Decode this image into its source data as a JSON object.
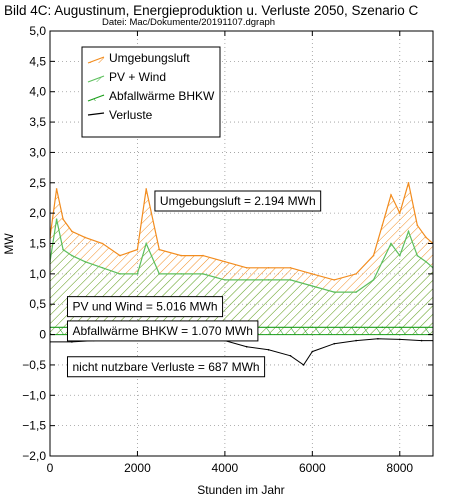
{
  "chart_data": {
    "type": "area",
    "title": "Bild 4C: Augustinum, Energieproduktion u. Verluste 2050, Szenario C",
    "subtitle": "Datei: Mac/Dokumente/20191107.dgraph",
    "xlabel": "Stunden im Jahr",
    "ylabel": "MW",
    "xlim": [
      0,
      8760
    ],
    "ylim": [
      -2.0,
      5.0
    ],
    "x_ticks": [
      0,
      2000,
      4000,
      6000,
      8000
    ],
    "x_tick_labels": [
      "0",
      "2000",
      "4000",
      "6000",
      "8000"
    ],
    "y_ticks": [
      -2.0,
      -1.5,
      -1.0,
      -0.5,
      0,
      0.5,
      1.0,
      1.5,
      2.0,
      2.5,
      3.0,
      3.5,
      4.0,
      4.5,
      5.0
    ],
    "y_tick_labels": [
      "−2,0",
      "−1,5",
      "−1,0",
      "−0,5",
      "0",
      "0,5",
      "1,0",
      "1,5",
      "2,0",
      "2,5",
      "3,0",
      "3,5",
      "4,0",
      "4,5",
      "5,0"
    ],
    "grid": true,
    "legend_position": "top-left",
    "series": [
      {
        "name": "Umgebungsluft",
        "color": "#f28c1e",
        "x": [
          0,
          150,
          300,
          500,
          800,
          1200,
          1600,
          2000,
          2200,
          2500,
          3000,
          3500,
          4000,
          4500,
          5000,
          5500,
          6000,
          6500,
          7000,
          7400,
          7600,
          7800,
          8000,
          8200,
          8400,
          8600,
          8760
        ],
        "y": [
          1.6,
          2.4,
          1.9,
          1.7,
          1.6,
          1.5,
          1.3,
          1.4,
          2.4,
          1.4,
          1.3,
          1.3,
          1.2,
          1.1,
          1.1,
          1.1,
          1.0,
          0.9,
          1.0,
          1.3,
          1.8,
          2.3,
          2.0,
          2.5,
          1.8,
          1.6,
          1.5
        ]
      },
      {
        "name": "PV + Wind",
        "color": "#5cbf5c",
        "x": [
          0,
          150,
          300,
          500,
          800,
          1200,
          1600,
          2000,
          2200,
          2500,
          3000,
          3500,
          4000,
          4500,
          5000,
          5500,
          6000,
          6500,
          7000,
          7400,
          7600,
          7800,
          8000,
          8200,
          8400,
          8600,
          8760
        ],
        "y": [
          1.2,
          1.9,
          1.4,
          1.3,
          1.2,
          1.1,
          1.0,
          1.0,
          1.5,
          1.0,
          1.0,
          1.0,
          0.9,
          0.9,
          0.9,
          0.9,
          0.8,
          0.7,
          0.7,
          0.9,
          1.2,
          1.5,
          1.3,
          1.7,
          1.3,
          1.2,
          1.1
        ]
      },
      {
        "name": "Abfallwärme BHKW",
        "color": "#1a9e1a",
        "x": [
          0,
          1000,
          2000,
          3000,
          4000,
          5000,
          6000,
          7000,
          7600,
          8000,
          8760
        ],
        "y": [
          0.12,
          0.12,
          0.12,
          0.12,
          0.12,
          0.12,
          0.12,
          0.12,
          0.12,
          0.12,
          0.12
        ]
      },
      {
        "name": "Verluste",
        "color": "#000000",
        "x": [
          0,
          500,
          1000,
          1500,
          2000,
          2500,
          3000,
          3500,
          4000,
          4500,
          5000,
          5500,
          5800,
          6000,
          6500,
          7000,
          7500,
          8000,
          8500,
          8760
        ],
        "y": [
          -0.12,
          -0.12,
          -0.1,
          -0.08,
          -0.08,
          -0.07,
          -0.07,
          -0.08,
          -0.1,
          -0.2,
          -0.25,
          -0.35,
          -0.5,
          -0.28,
          -0.15,
          -0.1,
          -0.07,
          -0.08,
          -0.1,
          -0.1
        ]
      }
    ],
    "annotations": [
      {
        "text": "Umgebungsluft = 2.194 MWh",
        "x": 2400,
        "y": 2.2
      },
      {
        "text": "PV und Wind = 5.016 MWh",
        "x": 400,
        "y": 0.46
      },
      {
        "text": "Abfallwärme BHKW = 1.070 MWh",
        "x": 400,
        "y": 0.06
      },
      {
        "text": "nicht nutzbare Verluste = 687 MWh",
        "x": 400,
        "y": -0.53
      }
    ]
  }
}
